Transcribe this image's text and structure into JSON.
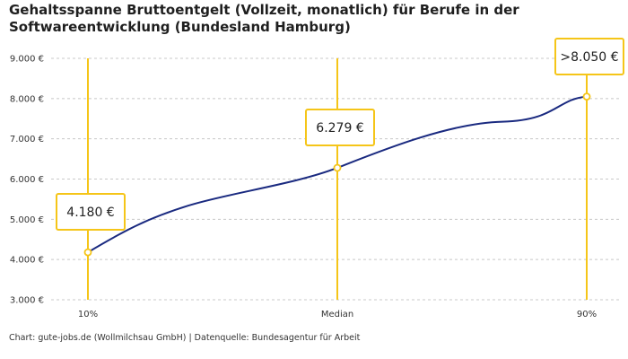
{
  "title": "Gehaltsspanne Bruttoentgelt (Vollzeit, monatlich) für Berufe in der Softwareentwicklung (Bundesland Hamburg)",
  "footer": "Chart: gute-jobs.de (Wollmilchsau GmbH) | Datenquelle: Bundesagentur für Arbeit",
  "colors": {
    "line": "#1a2a80",
    "accent": "#f5c518",
    "grid": "#c8c8c8"
  },
  "chart_data": {
    "type": "line",
    "categories": [
      "10%",
      "Median",
      "90%"
    ],
    "values": [
      4180,
      6279,
      8050
    ],
    "point_labels": [
      "4.180 €",
      "6.279 €",
      ">8.050 €"
    ],
    "ylim": [
      3000,
      9000
    ],
    "y_ticks": [
      3000,
      4000,
      5000,
      6000,
      7000,
      8000,
      9000
    ],
    "y_tick_labels": [
      "3.000 €",
      "4.000 €",
      "5.000 €",
      "6.000 €",
      "7.000 €",
      "8.000 €",
      "9.000 €"
    ],
    "grid": true,
    "title": "Gehaltsspanne Bruttoentgelt (Vollzeit, monatlich) für Berufe in der Softwareentwicklung (Bundesland Hamburg)",
    "xlabel": "",
    "ylabel": ""
  }
}
